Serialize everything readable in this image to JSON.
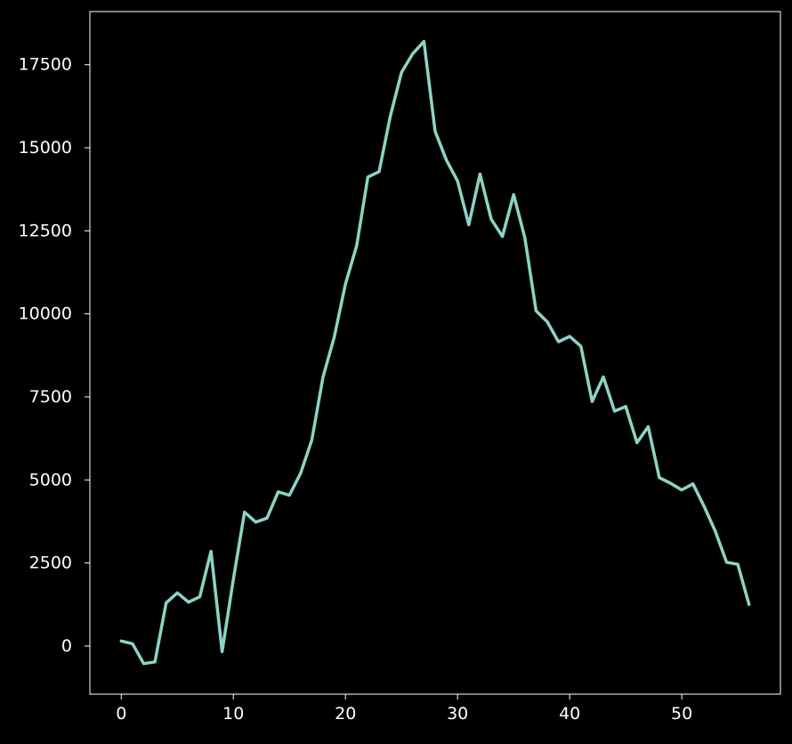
{
  "chart_data": {
    "type": "line",
    "title": "",
    "xlabel": "",
    "ylabel": "",
    "xlim": [
      -2.8,
      58.8
    ],
    "ylim": [
      -1450,
      19100
    ],
    "grid": false,
    "x_ticks": [
      0,
      10,
      20,
      30,
      40,
      50
    ],
    "y_ticks": [
      0,
      2500,
      5000,
      7500,
      10000,
      12500,
      15000,
      17500
    ],
    "x_tick_labels": [
      "0",
      "10",
      "20",
      "30",
      "40",
      "50"
    ],
    "y_tick_labels": [
      "0",
      "2500",
      "5000",
      "7500",
      "10000",
      "12500",
      "15000",
      "17500"
    ],
    "series": [
      {
        "color": "#8dd3c7",
        "x": [
          0,
          1,
          2,
          3,
          4,
          5,
          6,
          7,
          8,
          9,
          10,
          11,
          12,
          13,
          14,
          15,
          16,
          17,
          18,
          19,
          20,
          21,
          22,
          23,
          24,
          25,
          26,
          27,
          28,
          29,
          30,
          31,
          32,
          33,
          34,
          35,
          36,
          37,
          38,
          39,
          40,
          41,
          42,
          43,
          44,
          45,
          46,
          47,
          48,
          49,
          50,
          51,
          52,
          53,
          54,
          55,
          56
        ],
        "values": [
          150,
          70,
          -530,
          -480,
          1300,
          1600,
          1320,
          1480,
          2850,
          -170,
          2000,
          4030,
          3730,
          3850,
          4640,
          4540,
          5200,
          6200,
          8100,
          9300,
          10900,
          12050,
          14120,
          14280,
          15950,
          17270,
          17830,
          18200,
          15490,
          14630,
          14000,
          12680,
          14210,
          12850,
          12330,
          13590,
          12290,
          10090,
          9760,
          9160,
          9320,
          9020,
          7360,
          8100,
          7070,
          7210,
          6120,
          6600,
          5070,
          4900,
          4700,
          4880,
          4200,
          3450,
          2520,
          2460,
          1250
        ]
      }
    ]
  }
}
